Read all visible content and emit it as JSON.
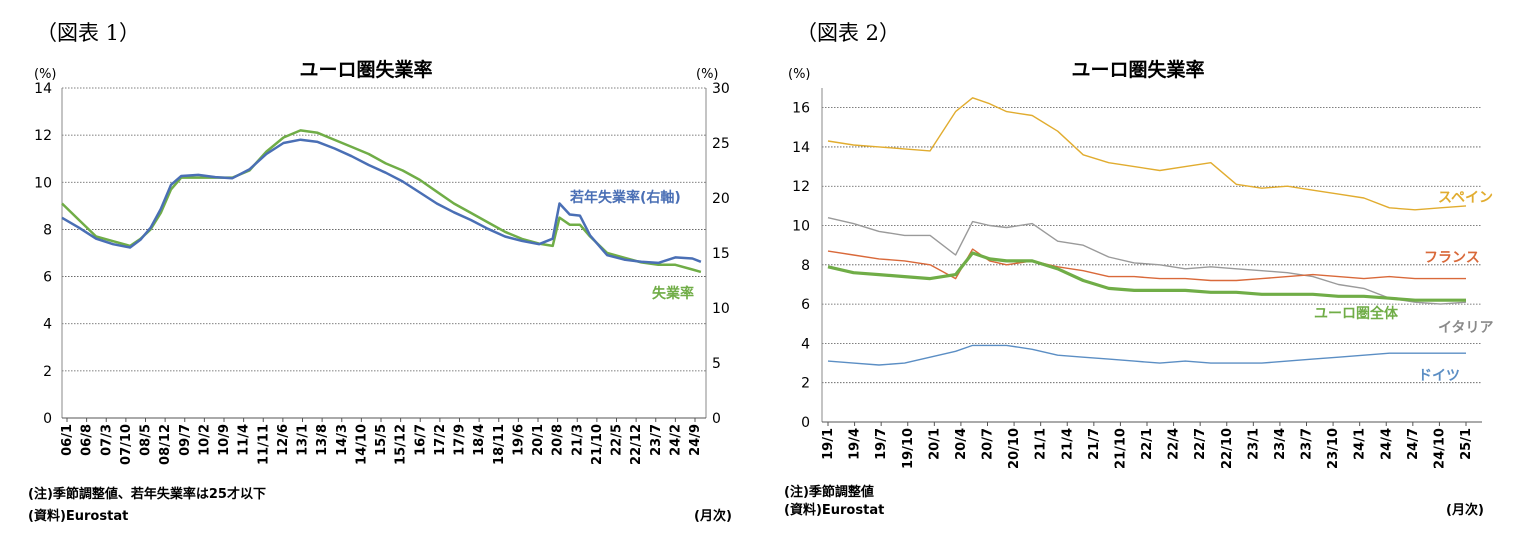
{
  "chart_data": [
    {
      "type": "line",
      "figure_label": "（図表 1）",
      "title": "ユーロ圏失業率",
      "left_unit": "(%)",
      "right_unit": "(%)",
      "x_unit": "(月次)",
      "ylim_left": [
        0,
        14
      ],
      "ylim_right": [
        0,
        30
      ],
      "y_ticks_left": [
        "0",
        "2",
        "4",
        "6",
        "8",
        "10",
        "12",
        "14"
      ],
      "y_ticks_right": [
        "0",
        "5",
        "10",
        "15",
        "20",
        "25",
        "30"
      ],
      "x_tick_labels": [
        "06/1",
        "06/8",
        "07/3",
        "07/10",
        "08/5",
        "08/12",
        "09/7",
        "10/2",
        "10/9",
        "11/4",
        "11/11",
        "12/6",
        "13/1",
        "13/8",
        "14/3",
        "14/10",
        "15/5",
        "15/12",
        "16/7",
        "17/2",
        "17/9",
        "18/4",
        "18/11",
        "19/6",
        "20/1",
        "20/8",
        "21/3",
        "21/10",
        "22/5",
        "22/12",
        "23/7",
        "24/2",
        "24/9"
      ],
      "grid": true,
      "notes": [
        "(注)季節調整値、若年失業率は25才以下",
        "(資料)Eurostat"
      ],
      "series": [
        {
          "name": "失業率",
          "axis": "left",
          "color": "#70ad47",
          "x": [
            2006.0,
            2006.5,
            2007.0,
            2007.5,
            2008.0,
            2008.3,
            2008.6,
            2008.9,
            2009.2,
            2009.5,
            2010.0,
            2010.5,
            2011.0,
            2011.5,
            2012.0,
            2012.5,
            2013.0,
            2013.5,
            2014.0,
            2014.5,
            2015.0,
            2015.5,
            2016.0,
            2016.5,
            2017.0,
            2017.5,
            2018.0,
            2018.5,
            2019.0,
            2019.5,
            2020.0,
            2020.4,
            2020.6,
            2020.9,
            2021.2,
            2021.5,
            2022.0,
            2022.5,
            2023.0,
            2023.5,
            2024.0,
            2024.5,
            2024.75
          ],
          "y": [
            9.1,
            8.4,
            7.7,
            7.5,
            7.3,
            7.6,
            8.0,
            8.7,
            9.7,
            10.2,
            10.2,
            10.2,
            10.2,
            10.5,
            11.3,
            11.9,
            12.2,
            12.1,
            11.8,
            11.5,
            11.2,
            10.8,
            10.5,
            10.1,
            9.6,
            9.1,
            8.7,
            8.3,
            7.9,
            7.6,
            7.4,
            7.3,
            8.5,
            8.2,
            8.2,
            7.7,
            7.0,
            6.8,
            6.6,
            6.5,
            6.5,
            6.3,
            6.2
          ]
        },
        {
          "name": "若年失業率(右軸)",
          "axis": "right",
          "color": "#4a6fb5",
          "x": [
            2006.0,
            2006.5,
            2007.0,
            2007.5,
            2008.0,
            2008.3,
            2008.6,
            2008.9,
            2009.2,
            2009.5,
            2010.0,
            2010.5,
            2011.0,
            2011.5,
            2012.0,
            2012.5,
            2013.0,
            2013.5,
            2014.0,
            2014.5,
            2015.0,
            2015.5,
            2016.0,
            2016.5,
            2017.0,
            2017.5,
            2018.0,
            2018.5,
            2019.0,
            2019.5,
            2020.0,
            2020.4,
            2020.6,
            2020.9,
            2021.2,
            2021.5,
            2022.0,
            2022.5,
            2023.0,
            2023.5,
            2024.0,
            2024.5,
            2024.75
          ],
          "y": [
            18.2,
            17.3,
            16.3,
            15.8,
            15.5,
            16.2,
            17.3,
            19.0,
            21.2,
            22.0,
            22.1,
            21.9,
            21.8,
            22.6,
            24.0,
            25.0,
            25.3,
            25.1,
            24.5,
            23.8,
            23.0,
            22.3,
            21.5,
            20.5,
            19.5,
            18.7,
            18.0,
            17.2,
            16.5,
            16.1,
            15.8,
            16.3,
            19.5,
            18.5,
            18.4,
            16.6,
            14.8,
            14.4,
            14.2,
            14.1,
            14.6,
            14.5,
            14.2
          ]
        }
      ],
      "series_labels": [
        "若年失業率(右軸)",
        "失業率"
      ]
    },
    {
      "type": "line",
      "figure_label": "（図表 2）",
      "title": "ユーロ圏失業率",
      "left_unit": "(%)",
      "x_unit": "(月次)",
      "ylim": [
        0,
        17
      ],
      "y_ticks": [
        "0",
        "2",
        "4",
        "6",
        "8",
        "10",
        "12",
        "14",
        "16"
      ],
      "x_tick_labels": [
        "19/1",
        "19/4",
        "19/7",
        "19/10",
        "20/1",
        "20/4",
        "20/7",
        "20/10",
        "21/1",
        "21/4",
        "21/7",
        "21/10",
        "22/1",
        "22/4",
        "22/7",
        "22/10",
        "23/1",
        "23/4",
        "23/7",
        "23/10",
        "24/1",
        "24/4",
        "24/7",
        "24/10",
        "25/1"
      ],
      "grid": true,
      "notes": [
        "(注)季節調整値",
        "(資料)Eurostat"
      ],
      "series": [
        {
          "name": "スペイン",
          "color": "#e1ac2f",
          "x": [
            0,
            3,
            6,
            9,
            12,
            15,
            17,
            19,
            21,
            24,
            27,
            30,
            33,
            36,
            39,
            42,
            45,
            48,
            51,
            54,
            57,
            60,
            63,
            66,
            69,
            72,
            75
          ],
          "y": [
            14.3,
            14.1,
            14.0,
            13.9,
            13.8,
            15.8,
            16.5,
            16.2,
            15.8,
            15.6,
            14.8,
            13.6,
            13.2,
            13.0,
            12.8,
            13.0,
            13.2,
            12.1,
            11.9,
            12.0,
            11.8,
            11.6,
            11.4,
            10.9,
            10.8,
            10.9,
            11.0
          ]
        },
        {
          "name": "フランス",
          "color": "#d9693a",
          "x": [
            0,
            3,
            6,
            9,
            12,
            15,
            17,
            19,
            21,
            24,
            27,
            30,
            33,
            36,
            39,
            42,
            45,
            48,
            51,
            54,
            57,
            60,
            63,
            66,
            69,
            72,
            75
          ],
          "y": [
            8.7,
            8.5,
            8.3,
            8.2,
            8.0,
            7.3,
            8.8,
            8.2,
            8.0,
            8.2,
            7.9,
            7.7,
            7.4,
            7.4,
            7.3,
            7.3,
            7.2,
            7.2,
            7.3,
            7.4,
            7.5,
            7.4,
            7.3,
            7.4,
            7.3,
            7.3,
            7.3
          ]
        },
        {
          "name": "ユーロ圏全体",
          "color": "#70ad47",
          "x": [
            0,
            3,
            6,
            9,
            12,
            15,
            17,
            19,
            21,
            24,
            27,
            30,
            33,
            36,
            39,
            42,
            45,
            48,
            51,
            54,
            57,
            60,
            63,
            66,
            69,
            72,
            75
          ],
          "y": [
            7.9,
            7.6,
            7.5,
            7.4,
            7.3,
            7.5,
            8.6,
            8.3,
            8.2,
            8.2,
            7.8,
            7.2,
            6.8,
            6.7,
            6.7,
            6.7,
            6.6,
            6.6,
            6.5,
            6.5,
            6.5,
            6.4,
            6.4,
            6.3,
            6.2,
            6.2,
            6.2
          ]
        },
        {
          "name": "イタリア",
          "color": "#9a9a9a",
          "x": [
            0,
            3,
            6,
            9,
            12,
            15,
            17,
            19,
            21,
            24,
            27,
            30,
            33,
            36,
            39,
            42,
            45,
            48,
            51,
            54,
            57,
            60,
            63,
            66,
            69,
            72,
            75
          ],
          "y": [
            10.4,
            10.1,
            9.7,
            9.5,
            9.5,
            8.5,
            10.2,
            10.0,
            9.9,
            10.1,
            9.2,
            9.0,
            8.4,
            8.1,
            8.0,
            7.8,
            7.9,
            7.8,
            7.7,
            7.6,
            7.4,
            7.0,
            6.8,
            6.3,
            6.1,
            6.0,
            6.1
          ]
        },
        {
          "name": "ドイツ",
          "color": "#5b8ec4",
          "x": [
            0,
            3,
            6,
            9,
            12,
            15,
            17,
            19,
            21,
            24,
            27,
            30,
            33,
            36,
            39,
            42,
            45,
            48,
            51,
            54,
            57,
            60,
            63,
            66,
            69,
            72,
            75
          ],
          "y": [
            3.1,
            3.0,
            2.9,
            3.0,
            3.3,
            3.6,
            3.9,
            3.9,
            3.9,
            3.7,
            3.4,
            3.3,
            3.2,
            3.1,
            3.0,
            3.1,
            3.0,
            3.0,
            3.0,
            3.1,
            3.2,
            3.3,
            3.4,
            3.5,
            3.5,
            3.5,
            3.5
          ]
        }
      ],
      "series_labels": [
        "スペイン",
        "フランス",
        "ユーロ圏全体",
        "イタリア",
        "ドイツ"
      ]
    }
  ]
}
